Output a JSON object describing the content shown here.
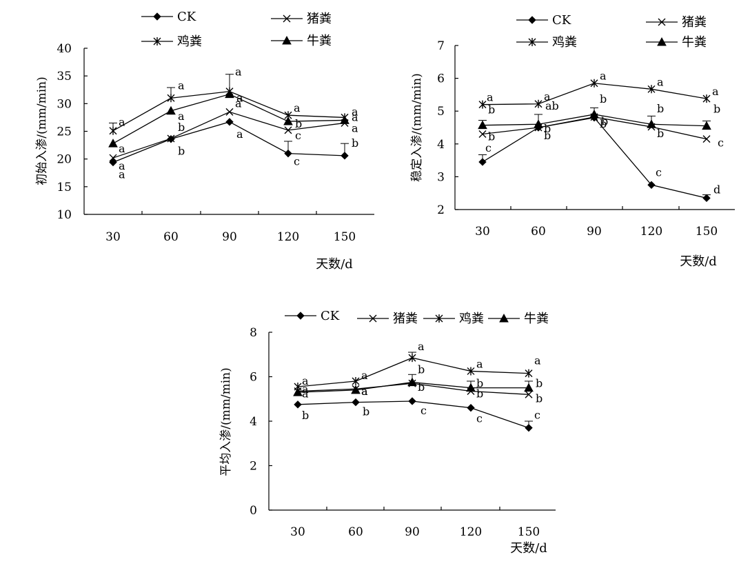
{
  "chart_data": [
    {
      "type": "line",
      "ylabel": "初始入渗/(mm/min)",
      "xlabel": "天数/d",
      "categories": [
        "30",
        "60",
        "90",
        "120",
        "150"
      ],
      "yticks": [
        "10",
        "15",
        "20",
        "25",
        "30",
        "35",
        "40"
      ],
      "ylim": [
        10,
        40
      ],
      "legend": [
        {
          "name": "CK",
          "marker": "diamond"
        },
        {
          "name": "猪粪",
          "marker": "x"
        },
        {
          "name": "鸡粪",
          "marker": "asterisk"
        },
        {
          "name": "牛粪",
          "marker": "triangle"
        }
      ],
      "series": [
        {
          "name": "CK",
          "marker": "diamond",
          "values": [
            19.4,
            23.6,
            26.7,
            21.0,
            20.6
          ],
          "err": [
            0,
            0,
            0,
            2.2,
            2.2
          ],
          "letters": [
            "a",
            "b",
            "a",
            "c",
            "b"
          ]
        },
        {
          "name": "猪粪",
          "marker": "x",
          "values": [
            20.2,
            23.7,
            28.5,
            25.2,
            26.5
          ],
          "err": [
            0,
            0,
            0,
            0,
            0
          ],
          "letters": [
            "a",
            "b",
            "a",
            "c",
            "a"
          ]
        },
        {
          "name": "鸡粪",
          "marker": "asterisk",
          "values": [
            25.1,
            31.0,
            32.2,
            27.9,
            27.5
          ],
          "err": [
            1.4,
            1.9,
            3.1,
            0,
            0
          ],
          "letters": [
            "a",
            "a",
            "a",
            "a",
            "a"
          ]
        },
        {
          "name": "牛粪",
          "marker": "triangle",
          "values": [
            22.8,
            28.7,
            31.7,
            26.8,
            27.0
          ],
          "err": [
            0,
            0,
            0,
            0,
            0
          ],
          "letters": [
            "a",
            "a",
            "a",
            "b",
            "a"
          ]
        }
      ]
    },
    {
      "type": "line",
      "ylabel": "稳定入渗/(mm/min)",
      "xlabel": "天数/d",
      "categories": [
        "30",
        "60",
        "90",
        "120",
        "150"
      ],
      "yticks": [
        "2",
        "3",
        "4",
        "5",
        "6",
        "7"
      ],
      "ylim": [
        2,
        7
      ],
      "legend": [
        {
          "name": "CK",
          "marker": "diamond"
        },
        {
          "name": "猪粪",
          "marker": "x"
        },
        {
          "name": "鸡粪",
          "marker": "asterisk"
        },
        {
          "name": "牛粪",
          "marker": "triangle"
        }
      ],
      "series": [
        {
          "name": "CK",
          "marker": "diamond",
          "values": [
            3.45,
            4.5,
            4.8,
            2.75,
            2.35
          ],
          "err": [
            0.22,
            0,
            0,
            0,
            0.1
          ],
          "letters": [
            "c",
            "b",
            "b",
            "c",
            "d"
          ]
        },
        {
          "name": "猪粪",
          "marker": "x",
          "values": [
            4.3,
            4.5,
            4.82,
            4.52,
            4.15
          ],
          "err": [
            0,
            0,
            0,
            0,
            0
          ],
          "letters": [
            "b",
            "b",
            "b",
            "b",
            "c"
          ]
        },
        {
          "name": "鸡粪",
          "marker": "asterisk",
          "values": [
            5.2,
            5.22,
            5.85,
            5.67,
            5.38
          ],
          "err": [
            0,
            0,
            0,
            0,
            0
          ],
          "letters": [
            "a",
            "a",
            "a",
            "a",
            "a"
          ]
        },
        {
          "name": "牛粪",
          "marker": "triangle",
          "values": [
            4.57,
            4.6,
            4.9,
            4.6,
            4.55
          ],
          "err": [
            0.15,
            0.3,
            0.2,
            0.25,
            0.15
          ],
          "letters": [
            "b",
            "ab",
            "b",
            "b",
            "b"
          ]
        }
      ]
    },
    {
      "type": "line",
      "ylabel": "平均入渗/(mm/min)",
      "xlabel": "天数/d",
      "categories": [
        "30",
        "60",
        "90",
        "120",
        "150"
      ],
      "yticks": [
        "0",
        "2",
        "4",
        "6",
        "8"
      ],
      "ylim": [
        0,
        8
      ],
      "legend": [
        {
          "name": "CK",
          "marker": "diamond"
        },
        {
          "name": "猪粪",
          "marker": "x"
        },
        {
          "name": "鸡粪",
          "marker": "asterisk"
        },
        {
          "name": "牛粪",
          "marker": "triangle"
        }
      ],
      "series": [
        {
          "name": "CK",
          "marker": "diamond",
          "values": [
            4.75,
            4.85,
            4.9,
            4.6,
            3.7
          ],
          "err": [
            0,
            0,
            0,
            0,
            0.3
          ],
          "letters": [
            "b",
            "b",
            "c",
            "c",
            "c"
          ]
        },
        {
          "name": "猪粪",
          "marker": "x",
          "values": [
            5.35,
            5.45,
            5.7,
            5.35,
            5.2
          ],
          "err": [
            0,
            0,
            0,
            0,
            0
          ],
          "letters": [
            "a",
            "a",
            "b",
            "b",
            "b"
          ]
        },
        {
          "name": "鸡粪",
          "marker": "asterisk",
          "values": [
            5.55,
            5.8,
            6.85,
            6.25,
            6.15
          ],
          "err": [
            0,
            0,
            0.25,
            0,
            0
          ],
          "letters": [
            "a",
            "a",
            "a",
            "a",
            "a"
          ]
        },
        {
          "name": "牛粪",
          "marker": "triangle",
          "values": [
            5.3,
            5.4,
            5.75,
            5.5,
            5.5
          ],
          "err": [
            0,
            0,
            0.35,
            0.3,
            0.3
          ],
          "letters": [
            "a",
            "a",
            "b",
            "b",
            "b"
          ]
        }
      ]
    }
  ]
}
